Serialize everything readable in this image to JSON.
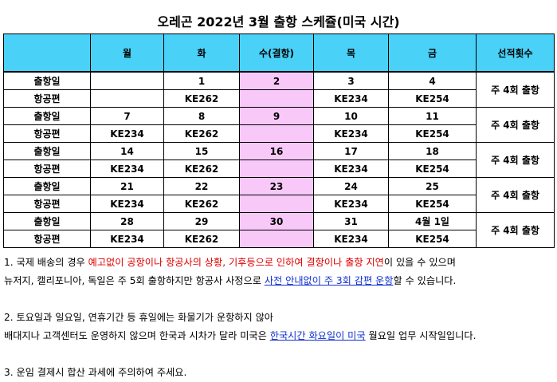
{
  "title": "오레곤 2022년 3월 출항 스케쥴(미국 시간)",
  "headers": [
    "",
    "월",
    "화",
    "수(결항)",
    "목",
    "금",
    "선적횟수"
  ],
  "weeks": [
    {
      "sail_label": "출항일",
      "flight_label": "항공편",
      "dates": [
        "",
        "1",
        "2",
        "3",
        "4"
      ],
      "flights": [
        "",
        "KE262",
        "",
        "KE234",
        "KE254"
      ],
      "frequency": "주 4회 출항"
    },
    {
      "sail_label": "출항일",
      "flight_label": "항공편",
      "dates": [
        "7",
        "8",
        "9",
        "10",
        "11"
      ],
      "flights": [
        "KE234",
        "KE262",
        "",
        "KE234",
        "KE254"
      ],
      "frequency": "주 4회 출항"
    },
    {
      "sail_label": "출항일",
      "flight_label": "항공편",
      "dates": [
        "14",
        "15",
        "16",
        "17",
        "18"
      ],
      "flights": [
        "KE234",
        "KE262",
        "",
        "KE234",
        "KE254"
      ],
      "frequency": "주 4회 출항"
    },
    {
      "sail_label": "출항일",
      "flight_label": "항공편",
      "dates": [
        "21",
        "22",
        "23",
        "24",
        "25"
      ],
      "flights": [
        "KE234",
        "KE262",
        "",
        "KE234",
        "KE254"
      ],
      "frequency": "주 4회 출항"
    },
    {
      "sail_label": "출항일",
      "flight_label": "항공편",
      "dates": [
        "28",
        "29",
        "30",
        "31",
        "4월 1일"
      ],
      "flights": [
        "KE234",
        "KE262",
        "",
        "KE234",
        "KE254"
      ],
      "frequency": "주 4회 출항"
    }
  ],
  "notes": {
    "n1_a": "1. 국제 배송의 경우 ",
    "n1_b": "예고없이 공항이나 항공사의 상황, 기후등으로 인하여 결항이나 출항 지연",
    "n1_c": "이 있을 수 있으며",
    "n1_d": "뉴저지, 캘리포니아, 독일은 주 5회 출항하지만 항공사 사정으로 ",
    "n1_e": "사전 안내없이 주 3회 감편 운항",
    "n1_f": "할 수 있습니다.",
    "n2_a": "2. 토요일과 일요일, 연휴기간 등 휴일에는 화물기가 운항하지 않아",
    "n2_b": "배대지나 고객센터도 운영하지 않으며 한국과 시차가 달라 미국은 ",
    "n2_c": "한국시간 화요일이 미국",
    "n2_d": " 월요일 업무 시작일입니다.",
    "n3": "3. 운임 결제시 합산 과세에 주의하여 주세요."
  },
  "colors": {
    "header_bg": "#49d1f7",
    "wednesday_bg": "#f8c9f8",
    "highlight_red": "#e10000",
    "highlight_blue": "#1030d0"
  }
}
